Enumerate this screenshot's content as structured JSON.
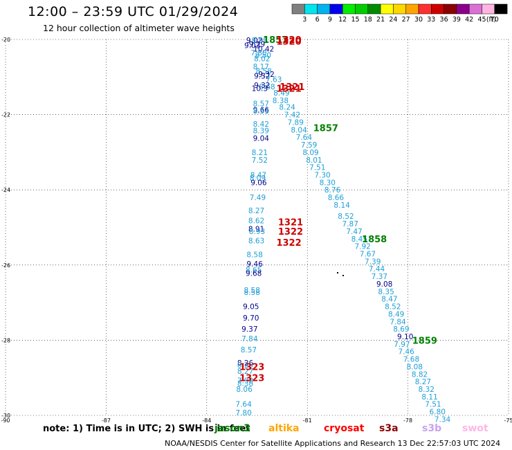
{
  "header": {
    "title": "12:00 – 23:59 UTC 01/29/2024",
    "subtitle": "12 hour collection of altimeter wave heights"
  },
  "colorbar": {
    "unit": "(ft)",
    "bins": [
      {
        "label": "3",
        "color": "#808080"
      },
      {
        "label": "6",
        "color": "#00e5ee"
      },
      {
        "label": "9",
        "color": "#00b2ee"
      },
      {
        "label": "12",
        "color": "#0000ee"
      },
      {
        "label": "15",
        "color": "#00ee00"
      },
      {
        "label": "18",
        "color": "#00cd00"
      },
      {
        "label": "21",
        "color": "#008b00"
      },
      {
        "label": "24",
        "color": "#ffff00"
      },
      {
        "label": "27",
        "color": "#ffd700"
      },
      {
        "label": "30",
        "color": "#ffa500"
      },
      {
        "label": "33",
        "color": "#ff3030"
      },
      {
        "label": "36",
        "color": "#cd0000"
      },
      {
        "label": "39",
        "color": "#8b0000"
      },
      {
        "label": "42",
        "color": "#8b008b"
      },
      {
        "label": "45",
        "color": "#da70d6"
      },
      {
        "label": "70",
        "color": "#ffb5e0"
      },
      {
        "label": "",
        "color": "#000000"
      }
    ]
  },
  "chart_data": {
    "type": "scatter",
    "title": "12:00 – 23:59 UTC 01/29/2024",
    "xlim": [
      -90,
      -75
    ],
    "ylim": [
      -30,
      -20
    ],
    "x_ticks": [
      -90,
      -87,
      -84,
      -81,
      -78,
      -75
    ],
    "y_ticks": [
      -20,
      -22,
      -24,
      -26,
      -28,
      -30
    ],
    "x_tick_labels": [
      "-90",
      "-87",
      "-84",
      "-81",
      "-78",
      "-75"
    ],
    "y_tick_labels": [
      "-20",
      "-22",
      "-24",
      "-26",
      "-28",
      "-30"
    ],
    "grid": true,
    "colors": {
      "light": "#1e9fd6",
      "dark": "#00008b",
      "green": "#008000",
      "red": "#cc0000"
    },
    "points": [
      {
        "x": -82.58,
        "y": -20.02,
        "v": "9.02",
        "c": "dark"
      },
      {
        "x": -82.42,
        "y": -20.02,
        "v": "8.98",
        "c": "light"
      },
      {
        "x": -82.5,
        "y": -20.12,
        "v": "9.29",
        "c": "dark"
      },
      {
        "x": -82.64,
        "y": -20.16,
        "v": "9.03",
        "c": "dark"
      },
      {
        "x": -82.3,
        "y": -20.25,
        "v": "10.42",
        "c": "dark"
      },
      {
        "x": -82.45,
        "y": -20.35,
        "v": "7.80",
        "c": "light"
      },
      {
        "x": -82.32,
        "y": -20.41,
        "v": "8.50",
        "c": "light"
      },
      {
        "x": -82.35,
        "y": -20.51,
        "v": "8.02",
        "c": "light"
      },
      {
        "x": -82.38,
        "y": -20.72,
        "v": "8.17",
        "c": "light"
      },
      {
        "x": -82.3,
        "y": -20.84,
        "v": "8.58",
        "c": "light"
      },
      {
        "x": -82.22,
        "y": -20.92,
        "v": "9.32",
        "c": "dark"
      },
      {
        "x": -82.35,
        "y": -20.97,
        "v": "9.32",
        "c": "dark"
      },
      {
        "x": -82.0,
        "y": -21.06,
        "v": "7.63",
        "c": "light"
      },
      {
        "x": -82.2,
        "y": -21.25,
        "v": "8.68",
        "c": "light"
      },
      {
        "x": -82.35,
        "y": -21.22,
        "v": "9.32",
        "c": "dark"
      },
      {
        "x": -82.42,
        "y": -21.3,
        "v": "10.3",
        "c": "dark"
      },
      {
        "x": -81.77,
        "y": -21.42,
        "v": "8.49",
        "c": "light"
      },
      {
        "x": -81.8,
        "y": -21.62,
        "v": "8.38",
        "c": "light"
      },
      {
        "x": -82.38,
        "y": -21.7,
        "v": "8.57",
        "c": "light"
      },
      {
        "x": -81.6,
        "y": -21.8,
        "v": "8.24",
        "c": "light"
      },
      {
        "x": -82.38,
        "y": -21.87,
        "v": "9.66",
        "c": "dark"
      },
      {
        "x": -82.38,
        "y": -21.9,
        "v": "8.53",
        "c": "light"
      },
      {
        "x": -81.45,
        "y": -22.0,
        "v": "7.42",
        "c": "light"
      },
      {
        "x": -81.35,
        "y": -22.2,
        "v": "7.89",
        "c": "light"
      },
      {
        "x": -82.38,
        "y": -22.25,
        "v": "8.42",
        "c": "light"
      },
      {
        "x": -81.25,
        "y": -22.4,
        "v": "8.04",
        "c": "light"
      },
      {
        "x": -82.38,
        "y": -22.42,
        "v": "8.39",
        "c": "light"
      },
      {
        "x": -81.1,
        "y": -22.6,
        "v": "7.64",
        "c": "light"
      },
      {
        "x": -82.38,
        "y": -22.62,
        "v": "9.04",
        "c": "dark"
      },
      {
        "x": -80.95,
        "y": -22.8,
        "v": "7.59",
        "c": "light"
      },
      {
        "x": -82.42,
        "y": -23.0,
        "v": "8.21",
        "c": "light"
      },
      {
        "x": -80.9,
        "y": -23.0,
        "v": "8.09",
        "c": "light"
      },
      {
        "x": -80.8,
        "y": -23.2,
        "v": "8.01",
        "c": "light"
      },
      {
        "x": -82.42,
        "y": -23.2,
        "v": "7.52",
        "c": "light"
      },
      {
        "x": -80.7,
        "y": -23.4,
        "v": "7.51",
        "c": "light"
      },
      {
        "x": -80.55,
        "y": -23.6,
        "v": "7.30",
        "c": "light"
      },
      {
        "x": -82.46,
        "y": -23.6,
        "v": "8.47",
        "c": "light"
      },
      {
        "x": -82.48,
        "y": -23.68,
        "v": "8.09",
        "c": "light"
      },
      {
        "x": -82.45,
        "y": -23.8,
        "v": "9.06",
        "c": "dark"
      },
      {
        "x": -80.4,
        "y": -23.8,
        "v": "8.30",
        "c": "light"
      },
      {
        "x": -80.25,
        "y": -24.0,
        "v": "8.76",
        "c": "light"
      },
      {
        "x": -80.15,
        "y": -24.2,
        "v": "8.66",
        "c": "light"
      },
      {
        "x": -82.48,
        "y": -24.2,
        "v": "7.49",
        "c": "light"
      },
      {
        "x": -79.97,
        "y": -24.4,
        "v": "8.14",
        "c": "light"
      },
      {
        "x": -82.52,
        "y": -24.55,
        "v": "8.27",
        "c": "light"
      },
      {
        "x": -79.85,
        "y": -24.7,
        "v": "8.52",
        "c": "light"
      },
      {
        "x": -82.52,
        "y": -24.82,
        "v": "8.62",
        "c": "light"
      },
      {
        "x": -79.72,
        "y": -24.9,
        "v": "7.87",
        "c": "light"
      },
      {
        "x": -82.52,
        "y": -25.04,
        "v": "8.91",
        "c": "dark"
      },
      {
        "x": -82.5,
        "y": -25.1,
        "v": "8.93",
        "c": "light"
      },
      {
        "x": -79.6,
        "y": -25.1,
        "v": "7.47",
        "c": "light"
      },
      {
        "x": -79.45,
        "y": -25.3,
        "v": "8.45",
        "c": "light"
      },
      {
        "x": -82.52,
        "y": -25.35,
        "v": "8.63",
        "c": "light"
      },
      {
        "x": -79.35,
        "y": -25.5,
        "v": "7.92",
        "c": "light"
      },
      {
        "x": -79.2,
        "y": -25.7,
        "v": "7.67",
        "c": "light"
      },
      {
        "x": -82.57,
        "y": -25.72,
        "v": "8.58",
        "c": "light"
      },
      {
        "x": -79.05,
        "y": -25.9,
        "v": "7.39",
        "c": "light"
      },
      {
        "x": -82.57,
        "y": -25.97,
        "v": "9.46",
        "c": "dark"
      },
      {
        "x": -78.93,
        "y": -26.1,
        "v": "7.44",
        "c": "light"
      },
      {
        "x": -82.6,
        "y": -26.12,
        "v": "8.65",
        "c": "light"
      },
      {
        "x": -82.6,
        "y": -26.22,
        "v": "9.68",
        "c": "dark"
      },
      {
        "x": -78.85,
        "y": -26.3,
        "v": "7.37",
        "c": "light"
      },
      {
        "x": -78.7,
        "y": -26.5,
        "v": "9.08",
        "c": "dark"
      },
      {
        "x": -82.65,
        "y": -26.67,
        "v": "8.58",
        "c": "light"
      },
      {
        "x": -78.65,
        "y": -26.7,
        "v": "8.35",
        "c": "light"
      },
      {
        "x": -82.65,
        "y": -26.72,
        "v": "8.58",
        "c": "light"
      },
      {
        "x": -78.55,
        "y": -26.9,
        "v": "8.47",
        "c": "light"
      },
      {
        "x": -82.68,
        "y": -27.1,
        "v": "9.05",
        "c": "dark"
      },
      {
        "x": -78.45,
        "y": -27.1,
        "v": "8.52",
        "c": "light"
      },
      {
        "x": -78.35,
        "y": -27.3,
        "v": "8.49",
        "c": "light"
      },
      {
        "x": -82.68,
        "y": -27.4,
        "v": "9.70",
        "c": "dark"
      },
      {
        "x": -78.3,
        "y": -27.5,
        "v": "7.84",
        "c": "light"
      },
      {
        "x": -82.72,
        "y": -27.7,
        "v": "9.37",
        "c": "dark"
      },
      {
        "x": -78.2,
        "y": -27.7,
        "v": "8.69",
        "c": "light"
      },
      {
        "x": -78.08,
        "y": -27.9,
        "v": "9.10",
        "c": "dark"
      },
      {
        "x": -82.72,
        "y": -27.96,
        "v": "7.84",
        "c": "light"
      },
      {
        "x": -78.18,
        "y": -28.1,
        "v": "7.97",
        "c": "light"
      },
      {
        "x": -82.75,
        "y": -28.25,
        "v": "8.57",
        "c": "light"
      },
      {
        "x": -78.05,
        "y": -28.3,
        "v": "7.46",
        "c": "light"
      },
      {
        "x": -77.9,
        "y": -28.5,
        "v": "7.68",
        "c": "light"
      },
      {
        "x": -82.85,
        "y": -28.6,
        "v": "8.26",
        "c": "dark"
      },
      {
        "x": -82.85,
        "y": -28.66,
        "v": "8.25",
        "c": "light"
      },
      {
        "x": -77.8,
        "y": -28.7,
        "v": "8.08",
        "c": "light"
      },
      {
        "x": -82.85,
        "y": -28.82,
        "v": "8.27",
        "c": "light"
      },
      {
        "x": -77.65,
        "y": -28.9,
        "v": "8.82",
        "c": "light"
      },
      {
        "x": -82.85,
        "y": -29.07,
        "v": "7.92",
        "c": "light"
      },
      {
        "x": -77.55,
        "y": -29.1,
        "v": "8.27",
        "c": "light"
      },
      {
        "x": -82.85,
        "y": -29.14,
        "v": "8.38",
        "c": "light"
      },
      {
        "x": -77.45,
        "y": -29.3,
        "v": "8.32",
        "c": "light"
      },
      {
        "x": -82.88,
        "y": -29.3,
        "v": "8.06",
        "c": "light"
      },
      {
        "x": -77.35,
        "y": -29.5,
        "v": "8.11",
        "c": "light"
      },
      {
        "x": -82.9,
        "y": -29.7,
        "v": "7.64",
        "c": "light"
      },
      {
        "x": -77.25,
        "y": -29.7,
        "v": "7.51",
        "c": "light"
      },
      {
        "x": -77.12,
        "y": -29.9,
        "v": "6.80",
        "c": "light"
      },
      {
        "x": -82.9,
        "y": -29.93,
        "v": "7.80",
        "c": "light"
      },
      {
        "x": -76.97,
        "y": -30.1,
        "v": "7.34",
        "c": "light"
      }
    ],
    "time_labels": [
      {
        "x": -81.95,
        "y": -20.0,
        "v": "1857",
        "c": "green"
      },
      {
        "x": -81.55,
        "y": -20.0,
        "v": "1320",
        "c": "red"
      },
      {
        "x": -81.55,
        "y": -20.05,
        "v": "1320",
        "c": "red"
      },
      {
        "x": -81.45,
        "y": -21.25,
        "v": "1321",
        "c": "red"
      },
      {
        "x": -81.55,
        "y": -21.3,
        "v": "1321",
        "c": "red"
      },
      {
        "x": -80.45,
        "y": -22.35,
        "v": "1857",
        "c": "green"
      },
      {
        "x": -81.5,
        "y": -24.85,
        "v": "1321",
        "c": "red"
      },
      {
        "x": -81.5,
        "y": -25.1,
        "v": "1322",
        "c": "red"
      },
      {
        "x": -81.55,
        "y": -25.4,
        "v": "1322",
        "c": "red"
      },
      {
        "x": -79.0,
        "y": -25.3,
        "v": "1858",
        "c": "green"
      },
      {
        "x": -77.5,
        "y": -28.0,
        "v": "1859",
        "c": "green"
      },
      {
        "x": -82.65,
        "y": -28.7,
        "v": "1323",
        "c": "red"
      },
      {
        "x": -82.65,
        "y": -29.0,
        "v": "1323",
        "c": "red"
      }
    ]
  },
  "footer": {
    "note": "note:  1) Time is in UTC; 2) SWH is in feet",
    "satellites": [
      {
        "name": "jason3",
        "color": "#008000"
      },
      {
        "name": "altika",
        "color": "#ffa500"
      },
      {
        "name": "cryosat",
        "color": "#ff0000"
      },
      {
        "name": "s3a",
        "color": "#8b0000"
      },
      {
        "name": "s3b",
        "color": "#c8a2f0"
      },
      {
        "name": "swot",
        "color": "#ffb6e6"
      }
    ],
    "credit": "NOAA/NESDIS Center for Satellite Applications and Research    13 Dec 22:57:03 UTC 2024"
  }
}
